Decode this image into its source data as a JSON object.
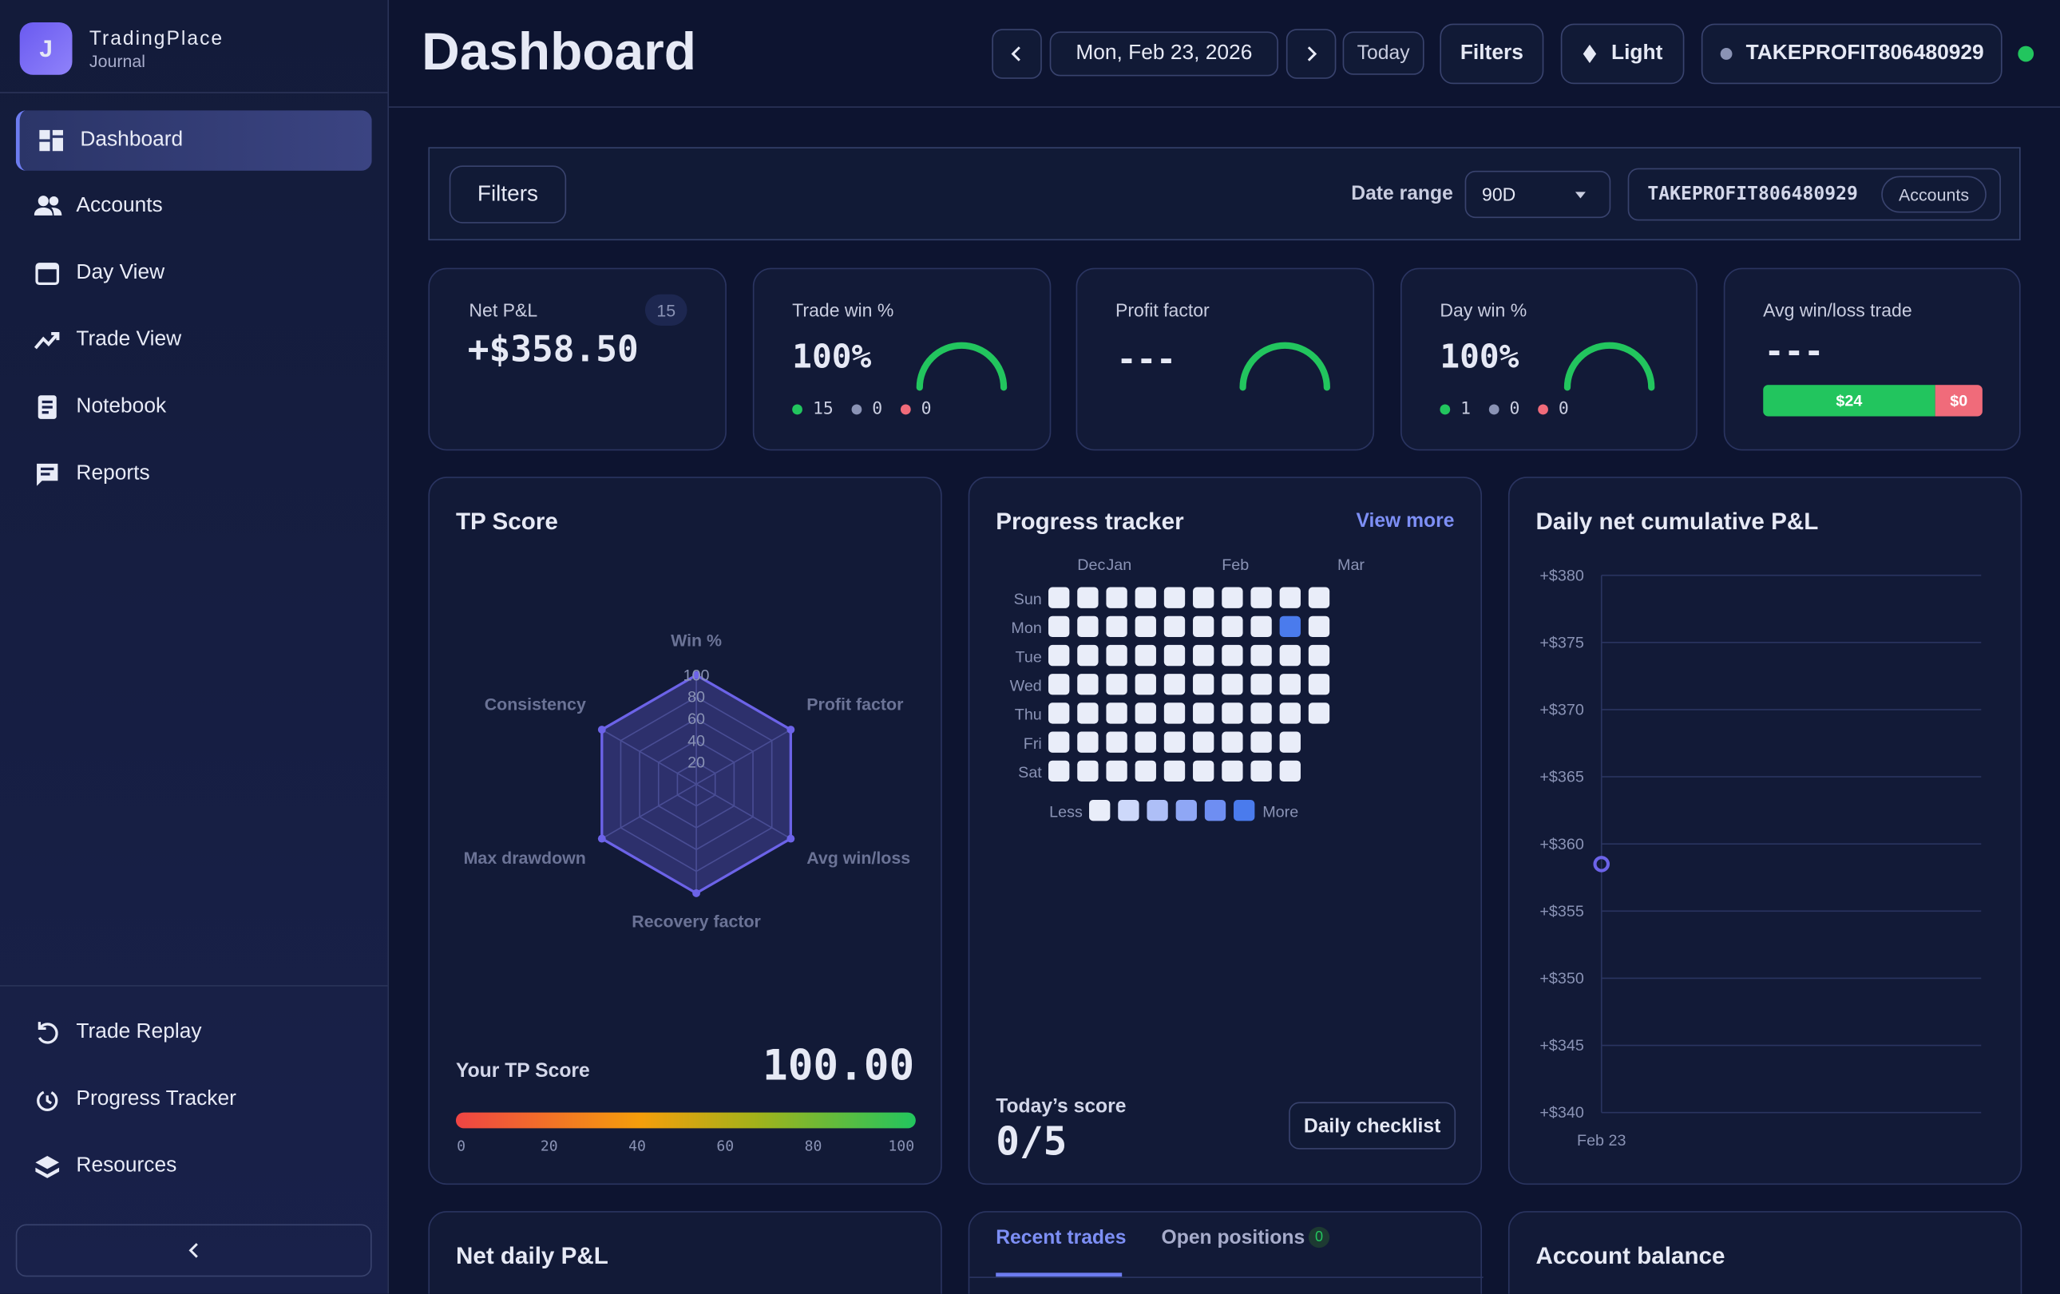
{
  "sidebar": {
    "brand": {
      "initial": "J",
      "name": "TradingPlace",
      "subtitle": "Journal"
    },
    "nav": [
      "Dashboard",
      "Accounts",
      "Day View",
      "Trade View",
      "Notebook",
      "Reports"
    ],
    "bottom_nav": [
      "Trade Replay",
      "Progress Tracker",
      "Resources"
    ]
  },
  "header": {
    "title": "Dashboard",
    "date": "Mon, Feb 23, 2026",
    "today": "Today",
    "filters": "Filters",
    "theme": "Light",
    "account": "TAKEPROFIT806480929"
  },
  "filter_bar": {
    "filters": "Filters",
    "date_range_label": "Date range",
    "date_range": "90D",
    "account": "TAKEPROFIT806480929",
    "accounts": "Accounts"
  },
  "stats": [
    {
      "label": "Net P&L",
      "badge": 15,
      "value": "+$358.50"
    },
    {
      "label": "Trade win %",
      "value": "100%",
      "counts": [
        15,
        0,
        0
      ]
    },
    {
      "label": "Profit factor",
      "value": "---"
    },
    {
      "label": "Day win %",
      "value": "100%",
      "counts": [
        1,
        0,
        0
      ]
    },
    {
      "label": "Avg win/loss trade",
      "value": "---",
      "bar": {
        "values": [
          24,
          0
        ],
        "value_labels": [
          "$24",
          "$0"
        ]
      }
    }
  ],
  "tp_score": {
    "title": "TP Score",
    "score_label": "Your TP Score",
    "score": "100.00",
    "scale_ticks": [
      0,
      20,
      40,
      60,
      80,
      100
    ]
  },
  "progress_tracker": {
    "title": "Progress tracker",
    "view_more": "View more",
    "legend_less": "Less",
    "legend_more": "More",
    "today_label": "Today’s score",
    "today_score": "0/5",
    "checklist": "Daily checklist"
  },
  "cumulative_pnl": {
    "title": "Daily net cumulative P&L"
  },
  "bottom_panels": {
    "net_daily": "Net daily P&L",
    "tabs": [
      "Recent trades",
      "Open positions"
    ],
    "open_positions_count": 0,
    "account_balance": "Account balance"
  },
  "chart_data": [
    {
      "type": "radar",
      "categories": [
        "Win %",
        "Profit factor",
        "Avg win/loss",
        "Recovery factor",
        "Max drawdown",
        "Consistency"
      ],
      "values": [
        100,
        100,
        100,
        100,
        100,
        100
      ],
      "color": "#6c63e8",
      "rlim": [
        0,
        100
      ],
      "rticks": [
        20,
        40,
        60,
        80,
        100
      ]
    },
    {
      "type": "heatmap",
      "categories": [
        null,
        "Dec",
        "Jan",
        null,
        null,
        null,
        "Feb",
        null,
        null,
        null,
        "Mar"
      ],
      "series": [
        {
          "name": "Sun",
          "values": [
            0,
            0,
            0,
            0,
            0,
            0,
            0,
            0,
            0,
            0,
            null
          ]
        },
        {
          "name": "Mon",
          "values": [
            0,
            0,
            0,
            0,
            0,
            0,
            0,
            0,
            5,
            0,
            null
          ]
        },
        {
          "name": "Tue",
          "values": [
            0,
            0,
            0,
            0,
            0,
            0,
            0,
            0,
            0,
            0,
            null
          ]
        },
        {
          "name": "Wed",
          "values": [
            0,
            0,
            0,
            0,
            0,
            0,
            0,
            0,
            0,
            0,
            null
          ]
        },
        {
          "name": "Thu",
          "values": [
            0,
            0,
            0,
            0,
            0,
            0,
            0,
            0,
            0,
            0,
            null
          ]
        },
        {
          "name": "Fri",
          "values": [
            0,
            0,
            0,
            0,
            0,
            0,
            0,
            0,
            0,
            null,
            null
          ]
        },
        {
          "name": "Sat",
          "values": [
            0,
            0,
            0,
            0,
            0,
            0,
            0,
            0,
            0,
            null,
            null
          ]
        }
      ],
      "colors": [
        "#e9edf9",
        "#cdd8fa",
        "#aebff7",
        "#8fa7f5",
        "#6e8ef2",
        "#4a7bed"
      ]
    },
    {
      "type": "line",
      "categories": [
        "Feb 23"
      ],
      "values": [
        358.5
      ],
      "color": "#6c63e8",
      "ylim": [
        340,
        380
      ],
      "yticks": [
        {
          "value": 340,
          "label": "+$340"
        },
        {
          "value": 345,
          "label": "+$345"
        },
        {
          "value": 350,
          "label": "+$350"
        },
        {
          "value": 355,
          "label": "+$355"
        },
        {
          "value": 360,
          "label": "+$360"
        },
        {
          "value": 365,
          "label": "+$365"
        },
        {
          "value": 370,
          "label": "+$370"
        },
        {
          "value": 375,
          "label": "+$375"
        },
        {
          "value": 380,
          "label": "+$380"
        }
      ],
      "grid": true
    }
  ]
}
